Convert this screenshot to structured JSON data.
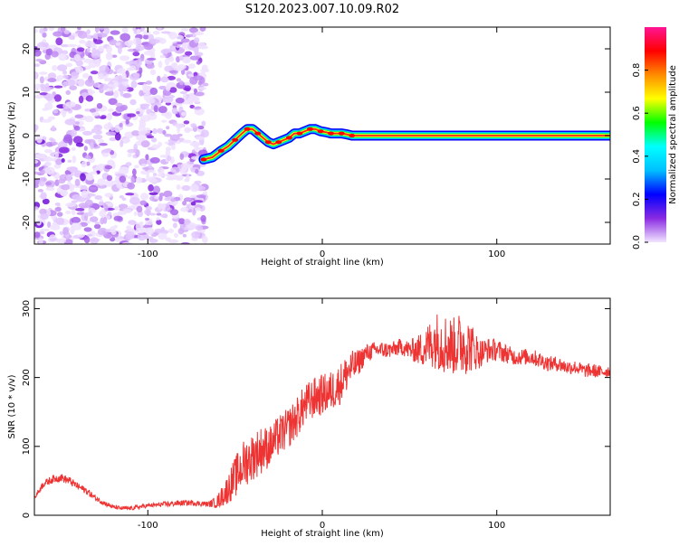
{
  "title": "S120.2023.007.10.09.R02",
  "chart_data": [
    {
      "type": "heatmap",
      "xlabel": "Height of straight line (km)",
      "ylabel": "Frequency (Hz)",
      "xlim": [
        -165,
        165
      ],
      "ylim": [
        -25,
        25
      ],
      "x_ticks": [
        -100,
        0,
        100
      ],
      "y_ticks": [
        -20,
        -10,
        0,
        10,
        20
      ],
      "grid": false,
      "noise_region_x": [
        -165,
        -67
      ],
      "signal_ridge": {
        "x": [
          -68,
          -63,
          -58,
          -54,
          -50,
          -46,
          -43,
          -40,
          -37,
          -34,
          -31,
          -28,
          -25,
          -22,
          -19,
          -16,
          -13,
          -10,
          -7,
          -4,
          -1,
          2,
          5,
          8,
          11,
          14,
          17,
          20,
          30,
          50,
          100,
          165
        ],
        "y": [
          -5.5,
          -5,
          -3.5,
          -2.5,
          -1,
          0.5,
          1.5,
          1.5,
          0.5,
          -0.5,
          -1.5,
          -2,
          -1.5,
          -1,
          -0.5,
          0.5,
          0.5,
          1,
          1.5,
          1.5,
          1,
          0.8,
          0.5,
          0.5,
          0.5,
          0.3,
          0,
          0,
          0,
          0,
          0,
          0
        ]
      },
      "colorbar": {
        "label": "Normalized spectral amplitude",
        "range": [
          0,
          1
        ],
        "ticks": [
          "0.0",
          "0.2",
          "0.4",
          "0.6",
          "0.8"
        ],
        "colors": [
          "#f2e6ff",
          "#8a2be2",
          "#0000ff",
          "#00bfff",
          "#00ffff",
          "#00ff00",
          "#ffff00",
          "#ff8c00",
          "#ff0000",
          "#ff1493"
        ]
      }
    },
    {
      "type": "line",
      "xlabel": "Height of straight line (km)",
      "ylabel": "SNR (10 * v/v)",
      "xlim": [
        -165,
        165
      ],
      "ylim": [
        0,
        315
      ],
      "x_ticks": [
        -100,
        0,
        100
      ],
      "y_ticks": [
        0,
        100,
        200,
        300
      ],
      "color": "#ee3333",
      "series": [
        {
          "x": [
            -165,
            -160,
            -155,
            -150,
            -145,
            -140,
            -135,
            -130,
            -125,
            -120,
            -115,
            -110,
            -105,
            -100,
            -95,
            -90,
            -85,
            -80,
            -75,
            -70,
            -65,
            -60,
            -55,
            -50,
            -45,
            -40,
            -35,
            -30,
            -25,
            -20,
            -15,
            -10,
            -5,
            0,
            5,
            10,
            15,
            20,
            25,
            30,
            35,
            40,
            45,
            50,
            55,
            60,
            65,
            70,
            75,
            80,
            85,
            90,
            95,
            100,
            105,
            110,
            115,
            120,
            125,
            130,
            135,
            140,
            145,
            150,
            155,
            160,
            165
          ],
          "y": [
            25,
            45,
            52,
            55,
            50,
            42,
            35,
            25,
            18,
            12,
            10,
            10,
            12,
            14,
            15,
            16,
            17,
            18,
            18,
            17,
            16,
            20,
            35,
            55,
            75,
            85,
            95,
            100,
            115,
            125,
            140,
            160,
            170,
            175,
            180,
            190,
            210,
            220,
            235,
            240,
            240,
            240,
            245,
            240,
            240,
            245,
            255,
            250,
            245,
            250,
            245,
            235,
            240,
            240,
            235,
            230,
            230,
            230,
            225,
            220,
            220,
            215,
            215,
            210,
            210,
            208,
            210
          ],
          "noise": [
            3,
            5,
            6,
            6,
            6,
            5,
            5,
            4,
            4,
            3,
            3,
            3,
            3,
            3,
            3,
            4,
            4,
            4,
            4,
            4,
            4,
            10,
            20,
            30,
            35,
            35,
            35,
            30,
            30,
            30,
            30,
            30,
            30,
            30,
            30,
            30,
            28,
            20,
            14,
            12,
            12,
            12,
            12,
            14,
            22,
            32,
            42,
            45,
            42,
            48,
            38,
            22,
            18,
            16,
            14,
            12,
            12,
            12,
            12,
            11,
            11,
            10,
            10,
            10,
            10,
            9,
            9
          ]
        }
      ]
    }
  ]
}
